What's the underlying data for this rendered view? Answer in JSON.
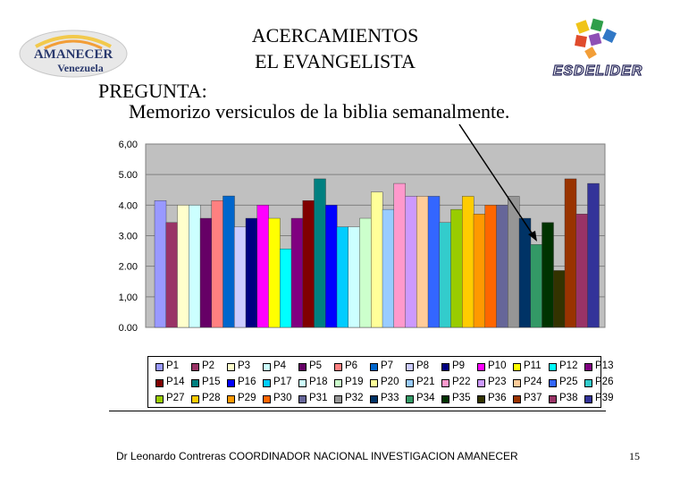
{
  "header": {
    "title_line1": "ACERCAMIENTOS",
    "title_line2": "EL EVANGELISTA",
    "question_label": "PREGUNTA:",
    "question_text": "Memorizo versiculos de la biblia semanalmente."
  },
  "logos": {
    "left_name": "AMANECER",
    "left_sub": "Venezuela",
    "right_text": "ESDELIDER"
  },
  "footer": {
    "left": "Dr Leonardo Contreras   COORDINADOR NACIONAL INVESTIGACION AMANECER",
    "page_number": "15"
  },
  "chart_data": {
    "type": "bar",
    "ylim": [
      0,
      6
    ],
    "yticks": [
      "0.00",
      "1,00",
      "2.00",
      "3.00",
      "4.00",
      "5.00",
      "6,00"
    ],
    "plot_background": "#c0c0c0",
    "grid": true,
    "legend_position": "bottom",
    "series": [
      {
        "name": "P1",
        "value": 4.15,
        "color": "#9999ff"
      },
      {
        "name": "P2",
        "value": 3.43,
        "color": "#993366"
      },
      {
        "name": "P3",
        "value": 4.0,
        "color": "#ffffcc"
      },
      {
        "name": "P4",
        "value": 4.0,
        "color": "#ccffff"
      },
      {
        "name": "P5",
        "value": 3.57,
        "color": "#660066"
      },
      {
        "name": "P6",
        "value": 4.15,
        "color": "#ff8080"
      },
      {
        "name": "P7",
        "value": 4.3,
        "color": "#0066cc"
      },
      {
        "name": "P8",
        "value": 3.29,
        "color": "#ccccff"
      },
      {
        "name": "P9",
        "value": 3.57,
        "color": "#000080"
      },
      {
        "name": "P10",
        "value": 4.0,
        "color": "#ff00ff"
      },
      {
        "name": "P11",
        "value": 3.57,
        "color": "#ffff00"
      },
      {
        "name": "P12",
        "value": 2.57,
        "color": "#00ffff"
      },
      {
        "name": "P13",
        "value": 3.57,
        "color": "#800080"
      },
      {
        "name": "P14",
        "value": 4.15,
        "color": "#800000"
      },
      {
        "name": "P15",
        "value": 4.86,
        "color": "#008080"
      },
      {
        "name": "P16",
        "value": 4.0,
        "color": "#0000ff"
      },
      {
        "name": "P17",
        "value": 3.29,
        "color": "#00ccff"
      },
      {
        "name": "P18",
        "value": 3.29,
        "color": "#ccffff"
      },
      {
        "name": "P19",
        "value": 3.57,
        "color": "#ccffcc"
      },
      {
        "name": "P20",
        "value": 4.43,
        "color": "#ffff99"
      },
      {
        "name": "P21",
        "value": 3.86,
        "color": "#99ccff"
      },
      {
        "name": "P22",
        "value": 4.71,
        "color": "#ff99cc"
      },
      {
        "name": "P23",
        "value": 4.29,
        "color": "#cc99ff"
      },
      {
        "name": "P24",
        "value": 4.29,
        "color": "#ffcc99"
      },
      {
        "name": "P25",
        "value": 4.29,
        "color": "#3366ff"
      },
      {
        "name": "P26",
        "value": 3.43,
        "color": "#33cccc"
      },
      {
        "name": "P27",
        "value": 3.86,
        "color": "#99cc00"
      },
      {
        "name": "P28",
        "value": 4.29,
        "color": "#ffcc00"
      },
      {
        "name": "P29",
        "value": 3.71,
        "color": "#ff9900"
      },
      {
        "name": "P30",
        "value": 4.0,
        "color": "#ff6600"
      },
      {
        "name": "P31",
        "value": 4.0,
        "color": "#666699"
      },
      {
        "name": "P32",
        "value": 4.29,
        "color": "#969696"
      },
      {
        "name": "P33",
        "value": 3.57,
        "color": "#003366"
      },
      {
        "name": "P34",
        "value": 2.71,
        "color": "#339966"
      },
      {
        "name": "P35",
        "value": 3.43,
        "color": "#003300"
      },
      {
        "name": "P36",
        "value": 1.86,
        "color": "#333300"
      },
      {
        "name": "P37",
        "value": 4.86,
        "color": "#993300"
      },
      {
        "name": "P38",
        "value": 3.71,
        "color": "#993366"
      },
      {
        "name": "P39",
        "value": 4.71,
        "color": "#333399"
      }
    ]
  }
}
